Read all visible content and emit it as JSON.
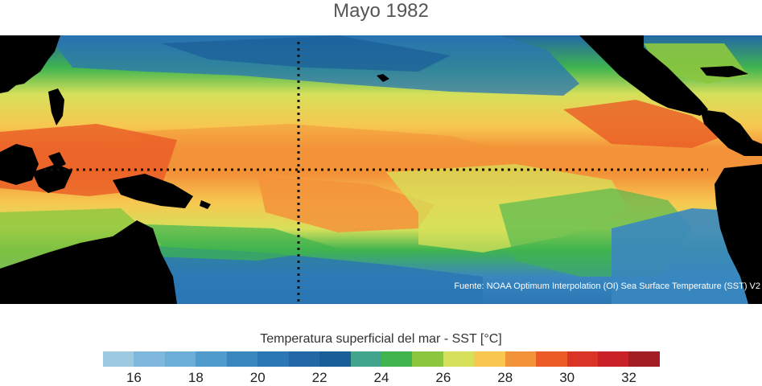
{
  "title": "Mayo 1982",
  "source": "Fuente: NOAA Optimum Interpolation (OI) Sea Surface Temperature (SST) V2",
  "legend": {
    "title": "Temperatura superficial del mar - SST  [°C]",
    "min": 15,
    "max": 33,
    "step": 1,
    "colors": [
      "#9ecae1",
      "#7fb8dc",
      "#6baed6",
      "#4f9bcc",
      "#3a87c0",
      "#2b76b4",
      "#2367a6",
      "#1a5e98",
      "#41a48d",
      "#3fb44f",
      "#8cc63f",
      "#d7e05a",
      "#f7c750",
      "#f39339",
      "#ea5b25",
      "#d93425",
      "#c9202a",
      "#a31d24"
    ],
    "ticks": [
      "16",
      "18",
      "20",
      "22",
      "24",
      "26",
      "28",
      "30",
      "32"
    ],
    "tick_values": [
      16,
      18,
      20,
      22,
      24,
      26,
      28,
      30,
      32
    ]
  }
}
